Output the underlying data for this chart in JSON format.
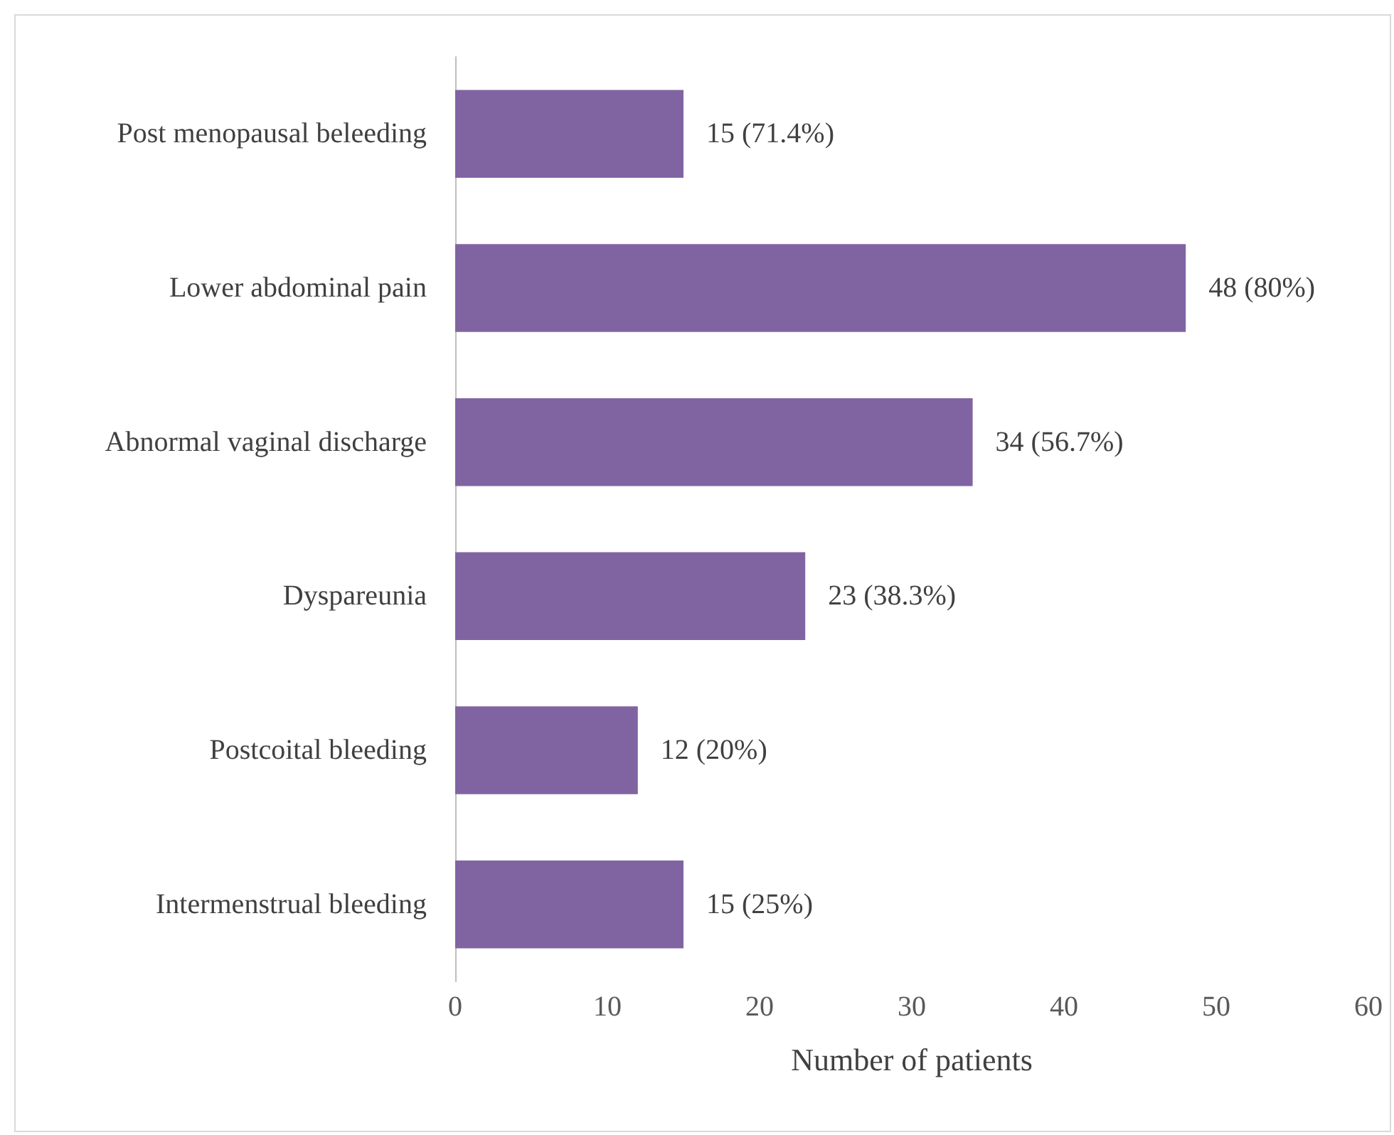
{
  "chart_data": {
    "type": "bar",
    "orientation": "horizontal",
    "xlabel": "Number of patients",
    "categories": [
      "Post menopausal beleeding",
      "Lower abdominal pain",
      "Abnormal vaginal discharge",
      "Dyspareunia",
      "Postcoital bleeding",
      "Intermenstrual bleeding"
    ],
    "values": [
      15,
      48,
      34,
      23,
      12,
      15
    ],
    "value_labels": [
      "15 (71.4%)",
      "48 (80%)",
      "34 (56.7%)",
      "23 (38.3%)",
      "12 (20%)",
      "15 (25%)"
    ],
    "color": "#8064a2",
    "xlim": [
      0,
      60
    ],
    "xticks": [
      0,
      10,
      20,
      30,
      40,
      50,
      60
    ]
  }
}
